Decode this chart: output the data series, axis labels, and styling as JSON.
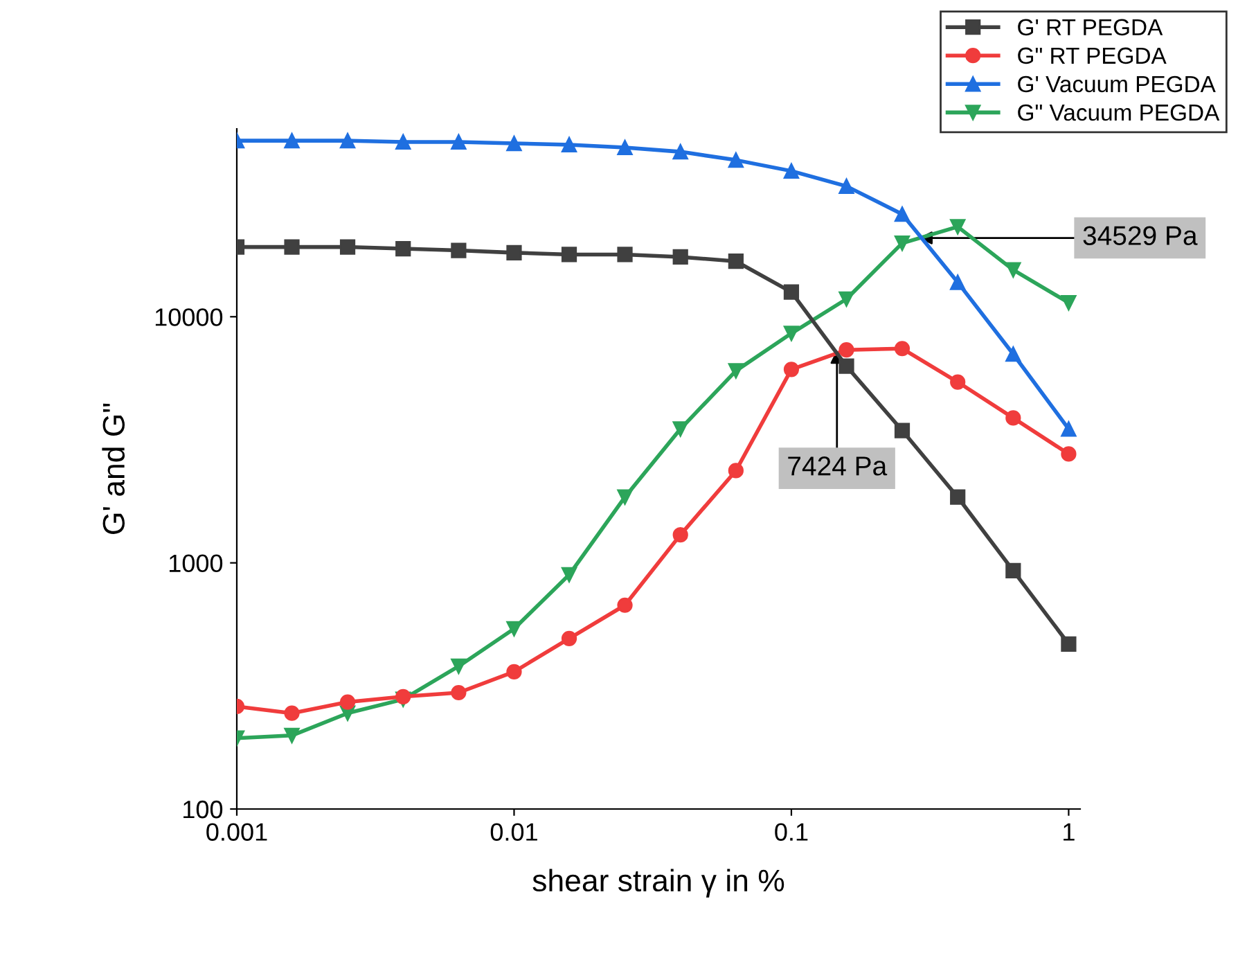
{
  "chart_data": {
    "type": "line",
    "xlabel": "shear strain γ in %",
    "ylabel": "G' and G\"",
    "log": "xy",
    "xlim": [
      0.001,
      1.1
    ],
    "ylim": [
      100,
      58000
    ],
    "xticks": [
      0.001,
      0.01,
      0.1,
      1
    ],
    "yticks": [
      100,
      1000,
      10000
    ],
    "grid": false,
    "legend": "top right",
    "x": [
      0.001,
      0.00158,
      0.00251,
      0.00398,
      0.00631,
      0.01,
      0.0158,
      0.0251,
      0.0398,
      0.0631,
      0.1,
      0.158,
      0.251,
      0.398,
      0.631,
      1
    ],
    "series": [
      {
        "name": "G' RT PEGDA",
        "color": "#404040",
        "marker": "square",
        "values": [
          19200,
          19200,
          19200,
          18900,
          18600,
          18200,
          17900,
          17900,
          17500,
          16800,
          12600,
          6300,
          3450,
          1850,
          930,
          468
        ]
      },
      {
        "name": "G\" RT PEGDA",
        "color": "#f03c3c",
        "marker": "circle",
        "values": [
          261,
          245,
          272,
          286,
          297,
          361,
          493,
          673,
          1300,
          2370,
          6110,
          7330,
          7424,
          5430,
          3880,
          2770
        ]
      },
      {
        "name": "G' Vacuum PEGDA",
        "color": "#1f6fe0",
        "marker": "triangle",
        "values": [
          51900,
          51900,
          51900,
          51300,
          51300,
          50600,
          50000,
          48700,
          46800,
          43300,
          39100,
          33900,
          26100,
          13800,
          7050,
          3500
        ]
      },
      {
        "name": "G\" Vacuum PEGDA",
        "color": "#2ca55a",
        "marker": "triangle_down",
        "values": [
          194,
          199,
          245,
          279,
          380,
          540,
          895,
          1850,
          3500,
          6030,
          8560,
          11800,
          19900,
          23200,
          15500,
          11400
        ]
      }
    ],
    "annotations": [
      {
        "text": "7424 Pa",
        "x": 0.146,
        "y": 7330
      },
      {
        "text": "34529 Pa",
        "x": 0.288,
        "y": 20900
      }
    ]
  }
}
